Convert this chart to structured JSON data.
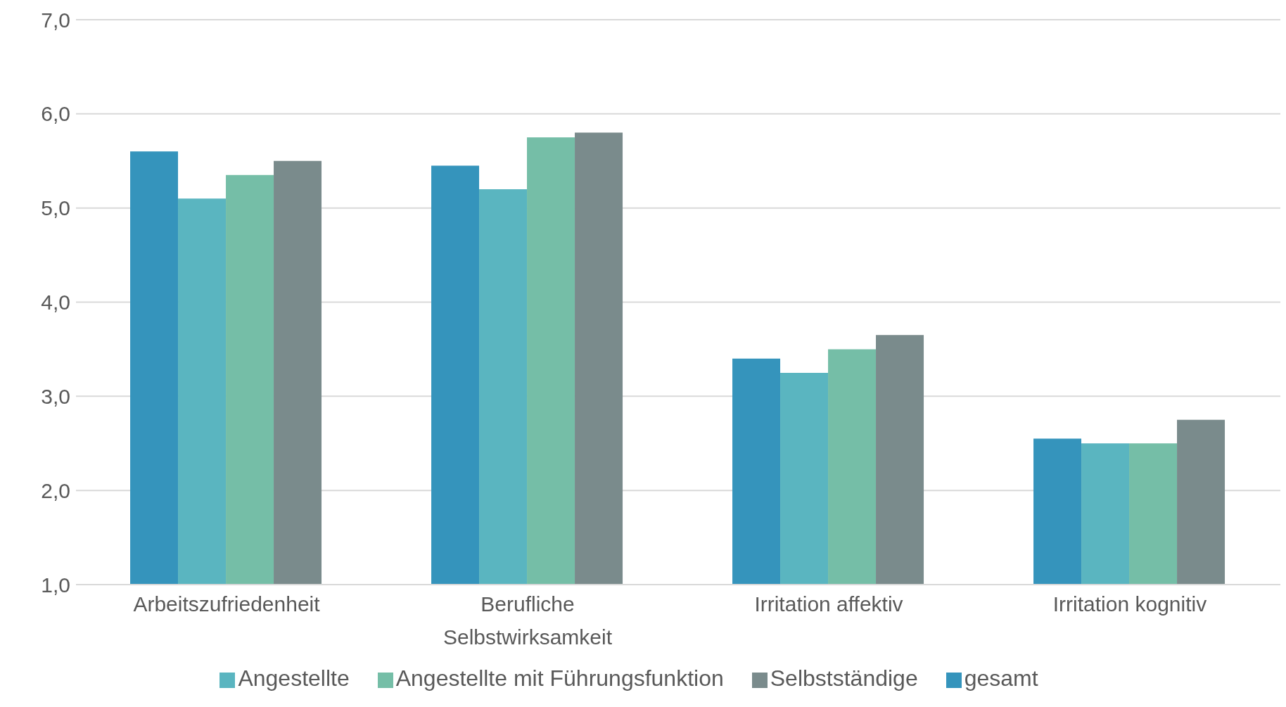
{
  "chart_data": {
    "type": "bar",
    "categories": [
      "Arbeitszufriedenheit",
      "Berufliche Selbstwirksamkeit",
      "Irritation affektiv",
      "Irritation kognitiv"
    ],
    "series": [
      {
        "name": "gesamt",
        "color": "#3594bc",
        "values": [
          5.6,
          5.45,
          3.4,
          2.55
        ]
      },
      {
        "name": "Angestellte",
        "color": "#5ab5c0",
        "values": [
          5.1,
          5.2,
          3.25,
          2.5
        ]
      },
      {
        "name": "Angestellte mit Führungsfunktion",
        "color": "#75bea7",
        "values": [
          5.35,
          5.75,
          3.5,
          2.5
        ]
      },
      {
        "name": "Selbstständige",
        "color": "#7a8b8c",
        "values": [
          5.5,
          5.8,
          3.65,
          2.75
        ]
      }
    ],
    "ylim": [
      1,
      7
    ],
    "yticks": [
      {
        "value": 1,
        "label": "1,0"
      },
      {
        "value": 2,
        "label": "2,0"
      },
      {
        "value": 3,
        "label": "3,0"
      },
      {
        "value": 4,
        "label": "4,0"
      },
      {
        "value": 5,
        "label": "5,0"
      },
      {
        "value": 6,
        "label": "6,0"
      },
      {
        "value": 7,
        "label": "7,0"
      }
    ],
    "grid": "y",
    "legend": "bottom"
  }
}
